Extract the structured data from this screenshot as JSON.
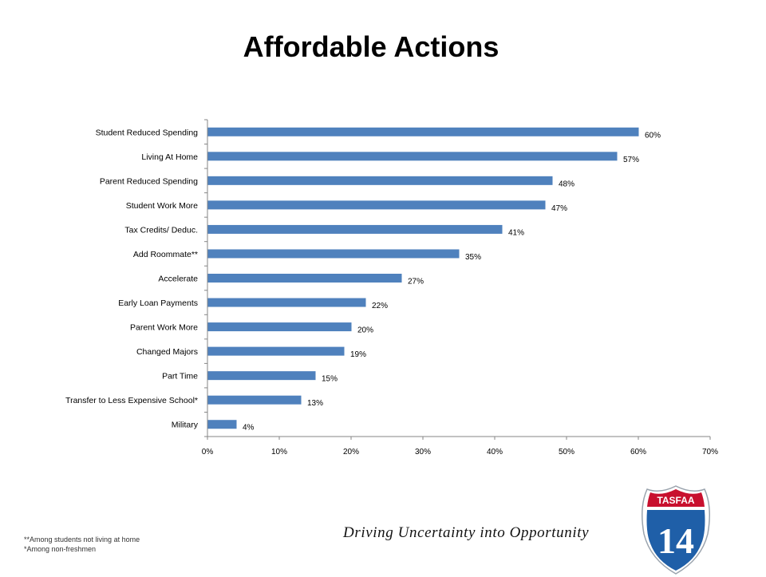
{
  "title": "Affordable Actions",
  "chart_data": {
    "type": "bar",
    "orientation": "horizontal",
    "categories": [
      "Student Reduced Spending",
      "Living At Home",
      "Parent Reduced Spending",
      "Student Work More",
      "Tax Credits/ Deduc.",
      "Add Roommate**",
      "Accelerate",
      "Early Loan Payments",
      "Parent Work More",
      "Changed Majors",
      "Part Time",
      "Transfer to Less Expensive School*",
      "Military"
    ],
    "values": [
      60,
      57,
      48,
      47,
      41,
      35,
      27,
      22,
      20,
      19,
      15,
      13,
      4
    ],
    "value_labels": [
      "60%",
      "57%",
      "48%",
      "47%",
      "41%",
      "35%",
      "27%",
      "22%",
      "20%",
      "19%",
      "15%",
      "13%",
      "4%"
    ],
    "xlim": [
      0,
      70
    ],
    "xticks": [
      "0%",
      "10%",
      "20%",
      "30%",
      "40%",
      "50%",
      "60%",
      "70%"
    ],
    "grid": false,
    "bar_color": "#4f81bd"
  },
  "footnotes": [
    "**Among students not living at home",
    "*Among non-freshmen"
  ],
  "tagline": "Driving Uncertainty into Opportunity",
  "logo": {
    "name": "TASFAA",
    "number": "14",
    "colors": {
      "top": "#c8102e",
      "bottom": "#1f5fa8",
      "border": "#ffffff"
    }
  }
}
